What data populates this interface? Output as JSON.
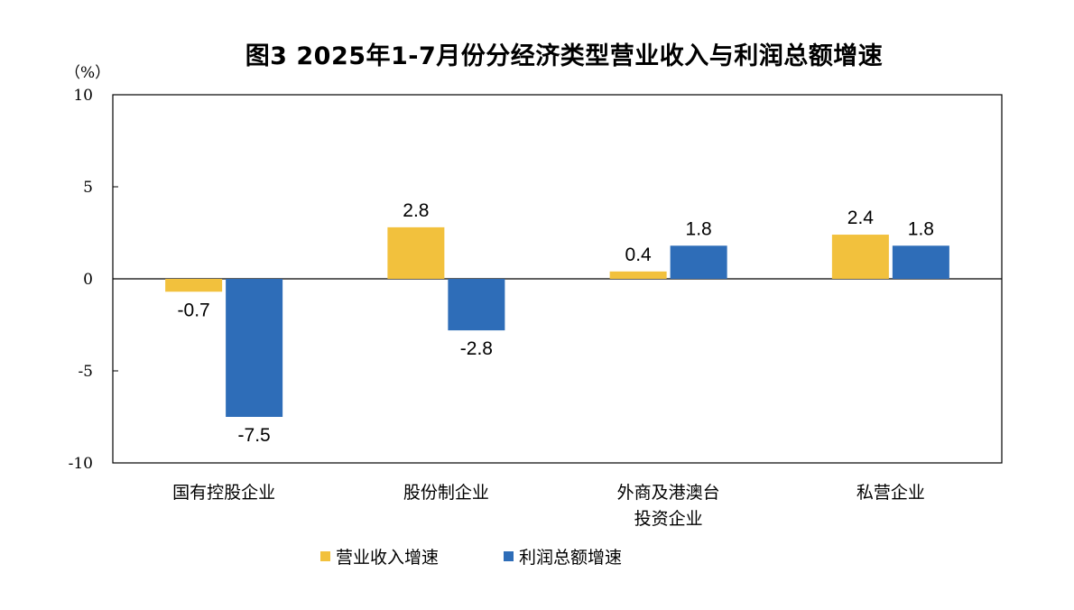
{
  "chart_data": {
    "type": "bar",
    "title": "图3 2025年1-7月份分经济类型营业收入与利润总额增速",
    "unit_label": "（%）",
    "categories": [
      [
        "国有控股企业"
      ],
      [
        "股份制企业"
      ],
      [
        "外商及港澳台",
        "投资企业"
      ],
      [
        "私营企业"
      ]
    ],
    "series": [
      {
        "name": "营业收入增速",
        "color": "#F2C13D",
        "values": [
          -0.7,
          2.8,
          0.4,
          2.4
        ],
        "labels": [
          "-0.7",
          "2.8",
          "0.4",
          "2.4"
        ]
      },
      {
        "name": "利润总额增速",
        "color": "#2E6DB8",
        "values": [
          -7.5,
          -2.8,
          1.8,
          1.8
        ],
        "labels": [
          "-7.5",
          "-2.8",
          "1.8",
          "1.8"
        ]
      }
    ],
    "ylim": [
      -10,
      10
    ],
    "yticks": [
      10,
      5,
      0,
      -5,
      -10
    ],
    "ytick_labels": [
      "10",
      "5",
      "0",
      "-5",
      "-10"
    ],
    "grid": false,
    "legend_position": "bottom"
  }
}
